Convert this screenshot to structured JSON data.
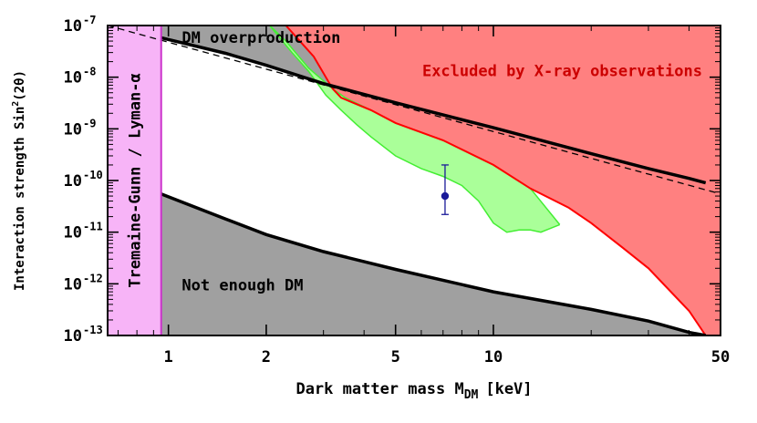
{
  "chart_data": {
    "type": "area",
    "xlabel": "Dark matter mass M",
    "xlabel_sub": "DM",
    "xlabel_unit": "[keV]",
    "ylabel": "Interaction strength Sin",
    "ylabel_sup": "2",
    "ylabel_tail": "(2θ)",
    "x_scale": "log",
    "y_scale": "log",
    "xlim": [
      0.65,
      50
    ],
    "ylim": [
      1e-13,
      1e-07
    ],
    "x_ticks": [
      {
        "value": 1,
        "label": "1"
      },
      {
        "value": 2,
        "label": "2"
      },
      {
        "value": 5,
        "label": "5"
      },
      {
        "value": 10,
        "label": "10"
      },
      {
        "value": 50,
        "label": "50"
      }
    ],
    "y_ticks": [
      {
        "value": 1e-13,
        "base": "10",
        "exp": "-13"
      },
      {
        "value": 1e-12,
        "base": "10",
        "exp": "-12"
      },
      {
        "value": 1e-11,
        "base": "10",
        "exp": "-11"
      },
      {
        "value": 1e-10,
        "base": "10",
        "exp": "-10"
      },
      {
        "value": 1e-09,
        "base": "10",
        "exp": "-9"
      },
      {
        "value": 1e-08,
        "base": "10",
        "exp": "-8"
      },
      {
        "value": 1e-07,
        "base": "10",
        "exp": "-7"
      }
    ],
    "regions": [
      {
        "name": "Tremaine-Gunn / Lyman-α",
        "label": "Tremaine-Gunn / Lyman-α",
        "color": "#f7b4f7",
        "edge_color": "#cc33cc",
        "x_max": 0.95
      },
      {
        "name": "DM overproduction",
        "label": "DM overproduction",
        "color": "#a0a0a0",
        "boundary": [
          [
            0.95,
            5.8e-08
          ],
          [
            1.5,
            2.9e-08
          ],
          [
            2,
            1.7e-08
          ],
          [
            3,
            7.5e-09
          ],
          [
            5,
            3.2e-09
          ],
          [
            10,
            1.05e-09
          ],
          [
            20,
            3.3e-10
          ],
          [
            30,
            1.7e-10
          ],
          [
            40,
            1.1e-10
          ],
          [
            45,
            9e-11
          ]
        ]
      },
      {
        "name": "Not enough DM",
        "label": "Not enough DM",
        "color": "#a0a0a0",
        "boundary": [
          [
            0.95,
            5.5e-11
          ],
          [
            1.5,
            1.8e-11
          ],
          [
            2,
            9e-12
          ],
          [
            3,
            4.2e-12
          ],
          [
            5,
            1.9e-12
          ],
          [
            10,
            7e-13
          ],
          [
            20,
            3.2e-13
          ],
          [
            30,
            1.9e-13
          ],
          [
            40,
            1.15e-13
          ],
          [
            45,
            1e-13
          ]
        ]
      },
      {
        "name": "Excluded by X-ray observations",
        "label": "Excluded by X-ray observations",
        "color": "#ff8080",
        "edge_color": "#ff0000",
        "boundary": [
          [
            2.3,
            1e-07
          ],
          [
            2.8,
            2.5e-08
          ],
          [
            3.2,
            6e-09
          ],
          [
            3.4,
            4e-09
          ],
          [
            4.2,
            2.3e-09
          ],
          [
            5,
            1.3e-09
          ],
          [
            7,
            6e-10
          ],
          [
            10,
            2e-10
          ],
          [
            13,
            7e-11
          ],
          [
            17,
            3e-11
          ],
          [
            20,
            1.5e-11
          ],
          [
            25,
            5e-12
          ],
          [
            30,
            2e-12
          ],
          [
            40,
            3e-13
          ],
          [
            45,
            1e-13
          ]
        ]
      },
      {
        "name": "green band",
        "color": "#aaff99",
        "edge_color": "#44ee33",
        "upper": [
          [
            2.05,
            1e-07
          ],
          [
            2.3,
            5e-08
          ],
          [
            2.7,
            1.5e-08
          ],
          [
            3.2,
            6e-09
          ],
          [
            3.5,
            4e-09
          ],
          [
            4.2,
            2.3e-09
          ],
          [
            5,
            1.3e-09
          ],
          [
            7,
            6e-10
          ],
          [
            10,
            2e-10
          ],
          [
            13,
            7e-11
          ],
          [
            16,
            1.4e-11
          ]
        ],
        "lower": [
          [
            2.05,
            1e-07
          ],
          [
            2.4,
            3e-08
          ],
          [
            2.7,
            1.3e-08
          ],
          [
            3.05,
            4.5e-09
          ],
          [
            3.4,
            2.3e-09
          ],
          [
            3.8,
            1.2e-09
          ],
          [
            4.2,
            7e-10
          ],
          [
            5,
            3e-10
          ],
          [
            6,
            1.7e-10
          ],
          [
            7,
            1.2e-10
          ],
          [
            8,
            8e-11
          ],
          [
            9,
            4e-11
          ],
          [
            10,
            1.5e-11
          ],
          [
            11,
            1e-11
          ],
          [
            12,
            1.1e-11
          ],
          [
            13,
            1.1e-11
          ],
          [
            14,
            1e-11
          ],
          [
            16,
            1.4e-11
          ]
        ]
      }
    ],
    "dashed_line": {
      "points": [
        [
          0.65,
          1e-07
        ],
        [
          50,
          5.5e-11
        ]
      ],
      "color": "#000000"
    },
    "data_point": {
      "x": 7.1,
      "y": 5e-11,
      "y_low": 2.2e-11,
      "y_high": 2e-10,
      "color": "#1a1a99"
    }
  }
}
